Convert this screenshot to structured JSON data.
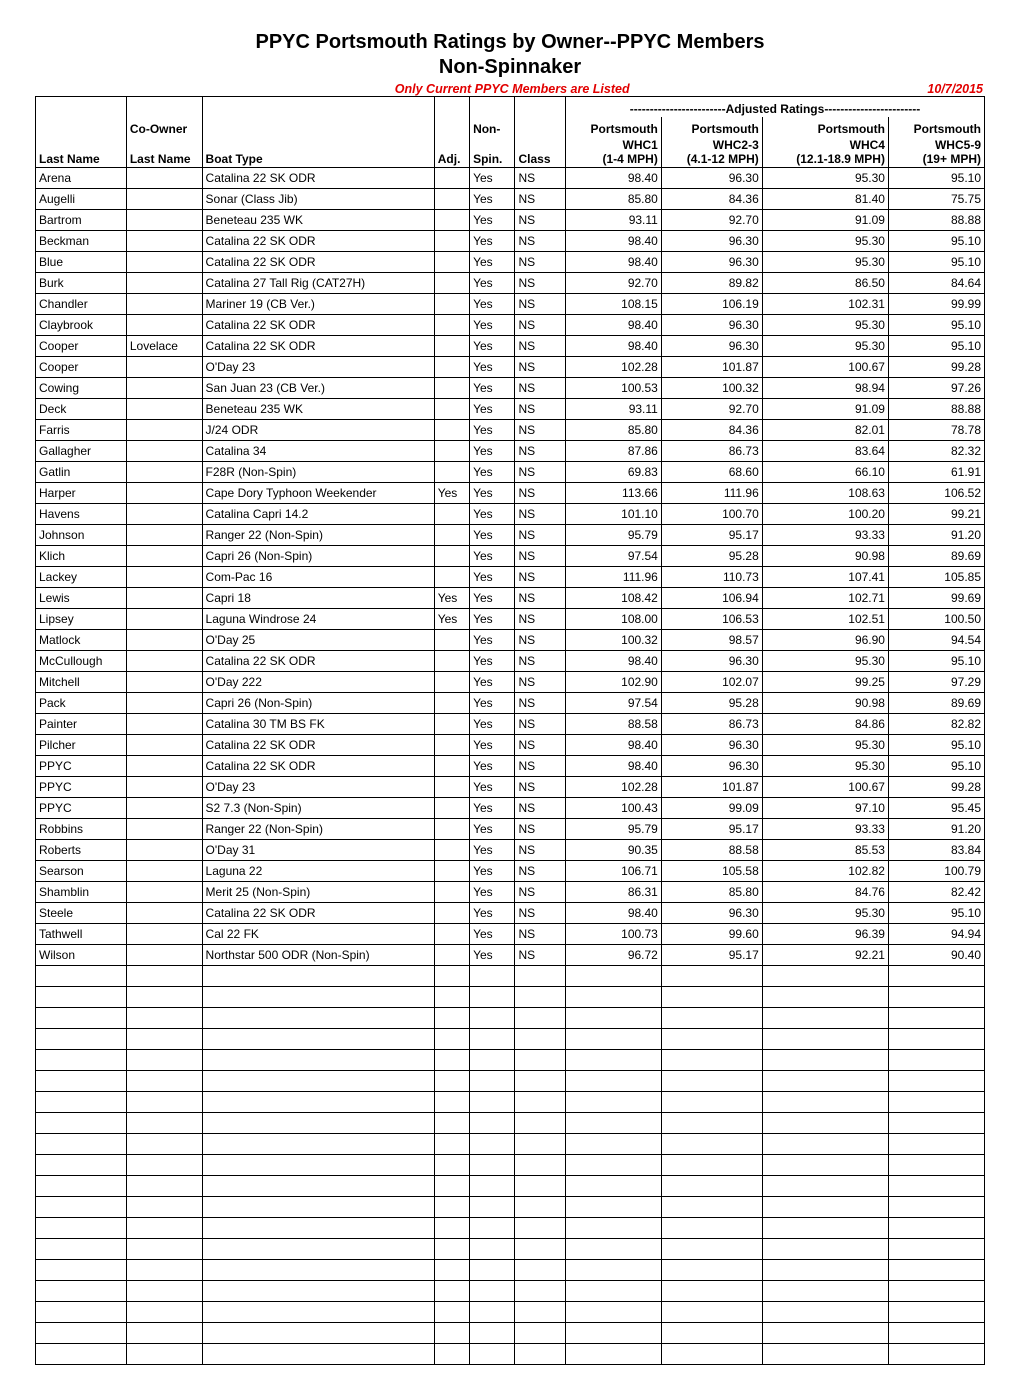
{
  "title_line1": "PPYC Portsmouth Ratings by Owner--PPYC Members",
  "title_line2": "Non-Spinnaker",
  "notice": "Only Current PPYC Members are Listed",
  "date": "10/7/2015",
  "adjusted_header": "------------------------Adjusted Ratings------------------------",
  "columns": {
    "last_name": "Last Name",
    "co_owner_l1": "Co-Owner",
    "co_owner_l2": "Last Name",
    "boat_type": "Boat Type",
    "adj": "Adj.",
    "non_l1": "Non-",
    "non_l2": "Spin.",
    "class": "Class",
    "w1_l1": "Portsmouth",
    "w1_l2": "WHC1",
    "w1_l3": "(1-4 MPH)",
    "w2_l1": "Portsmouth",
    "w2_l2": "WHC2-3",
    "w2_l3": "(4.1-12 MPH)",
    "w3_l1": "Portsmouth",
    "w3_l2": "WHC4",
    "w3_l3": "(12.1-18.9 MPH)",
    "w4_l1": "Portsmouth",
    "w4_l2": "WHC5-9",
    "w4_l3": "(19+ MPH)"
  },
  "rows": [
    {
      "last": "Arena",
      "co": "",
      "boat": "Catalina 22 SK ODR",
      "adj": "",
      "spin": "Yes",
      "cls": "NS",
      "w1": "98.40",
      "w2": "96.30",
      "w3": "95.30",
      "w4": "95.10"
    },
    {
      "last": "Augelli",
      "co": "",
      "boat": "Sonar (Class Jib)",
      "adj": "",
      "spin": "Yes",
      "cls": "NS",
      "w1": "85.80",
      "w2": "84.36",
      "w3": "81.40",
      "w4": "75.75"
    },
    {
      "last": "Bartrom",
      "co": "",
      "boat": "Beneteau 235 WK",
      "adj": "",
      "spin": "Yes",
      "cls": "NS",
      "w1": "93.11",
      "w2": "92.70",
      "w3": "91.09",
      "w4": "88.88"
    },
    {
      "last": "Beckman",
      "co": "",
      "boat": "Catalina 22 SK ODR",
      "adj": "",
      "spin": "Yes",
      "cls": "NS",
      "w1": "98.40",
      "w2": "96.30",
      "w3": "95.30",
      "w4": "95.10"
    },
    {
      "last": "Blue",
      "co": "",
      "boat": "Catalina 22 SK ODR",
      "adj": "",
      "spin": "Yes",
      "cls": "NS",
      "w1": "98.40",
      "w2": "96.30",
      "w3": "95.30",
      "w4": "95.10"
    },
    {
      "last": "Burk",
      "co": "",
      "boat": "Catalina 27 Tall Rig (CAT27H)",
      "adj": "",
      "spin": "Yes",
      "cls": "NS",
      "w1": "92.70",
      "w2": "89.82",
      "w3": "86.50",
      "w4": "84.64"
    },
    {
      "last": "Chandler",
      "co": "",
      "boat": "Mariner 19 (CB Ver.)",
      "adj": "",
      "spin": "Yes",
      "cls": "NS",
      "w1": "108.15",
      "w2": "106.19",
      "w3": "102.31",
      "w4": "99.99"
    },
    {
      "last": "Claybrook",
      "co": "",
      "boat": "Catalina 22 SK ODR",
      "adj": "",
      "spin": "Yes",
      "cls": "NS",
      "w1": "98.40",
      "w2": "96.30",
      "w3": "95.30",
      "w4": "95.10"
    },
    {
      "last": "Cooper",
      "co": "Lovelace",
      "boat": "Catalina 22 SK ODR",
      "adj": "",
      "spin": "Yes",
      "cls": "NS",
      "w1": "98.40",
      "w2": "96.30",
      "w3": "95.30",
      "w4": "95.10"
    },
    {
      "last": "Cooper",
      "co": "",
      "boat": "O'Day 23",
      "adj": "",
      "spin": "Yes",
      "cls": "NS",
      "w1": "102.28",
      "w2": "101.87",
      "w3": "100.67",
      "w4": "99.28"
    },
    {
      "last": "Cowing",
      "co": "",
      "boat": "San Juan 23 (CB Ver.)",
      "adj": "",
      "spin": "Yes",
      "cls": "NS",
      "w1": "100.53",
      "w2": "100.32",
      "w3": "98.94",
      "w4": "97.26"
    },
    {
      "last": "Deck",
      "co": "",
      "boat": "Beneteau 235 WK",
      "adj": "",
      "spin": "Yes",
      "cls": "NS",
      "w1": "93.11",
      "w2": "92.70",
      "w3": "91.09",
      "w4": "88.88"
    },
    {
      "last": "Farris",
      "co": "",
      "boat": "J/24 ODR",
      "adj": "",
      "spin": "Yes",
      "cls": "NS",
      "w1": "85.80",
      "w2": "84.36",
      "w3": "82.01",
      "w4": "78.78"
    },
    {
      "last": "Gallagher",
      "co": "",
      "boat": "Catalina 34",
      "adj": "",
      "spin": "Yes",
      "cls": "NS",
      "w1": "87.86",
      "w2": "86.73",
      "w3": "83.64",
      "w4": "82.32"
    },
    {
      "last": "Gatlin",
      "co": "",
      "boat": "F28R (Non-Spin)",
      "adj": "",
      "spin": "Yes",
      "cls": "NS",
      "w1": "69.83",
      "w2": "68.60",
      "w3": "66.10",
      "w4": "61.91"
    },
    {
      "last": "Harper",
      "co": "",
      "boat": "Cape Dory Typhoon Weekender",
      "adj": "Yes",
      "spin": "Yes",
      "cls": "NS",
      "w1": "113.66",
      "w2": "111.96",
      "w3": "108.63",
      "w4": "106.52"
    },
    {
      "last": "Havens",
      "co": "",
      "boat": "Catalina Capri 14.2",
      "adj": "",
      "spin": "Yes",
      "cls": "NS",
      "w1": "101.10",
      "w2": "100.70",
      "w3": "100.20",
      "w4": "99.21"
    },
    {
      "last": "Johnson",
      "co": "",
      "boat": "Ranger 22 (Non-Spin)",
      "adj": "",
      "spin": "Yes",
      "cls": "NS",
      "w1": "95.79",
      "w2": "95.17",
      "w3": "93.33",
      "w4": "91.20"
    },
    {
      "last": "Klich",
      "co": "",
      "boat": "Capri 26 (Non-Spin)",
      "adj": "",
      "spin": "Yes",
      "cls": "NS",
      "w1": "97.54",
      "w2": "95.28",
      "w3": "90.98",
      "w4": "89.69"
    },
    {
      "last": "Lackey",
      "co": "",
      "boat": "Com-Pac 16",
      "adj": "",
      "spin": "Yes",
      "cls": "NS",
      "w1": "111.96",
      "w2": "110.73",
      "w3": "107.41",
      "w4": "105.85"
    },
    {
      "last": "Lewis",
      "co": "",
      "boat": "Capri 18",
      "adj": "Yes",
      "spin": "Yes",
      "cls": "NS",
      "w1": "108.42",
      "w2": "106.94",
      "w3": "102.71",
      "w4": "99.69"
    },
    {
      "last": "Lipsey",
      "co": "",
      "boat": "Laguna Windrose 24",
      "adj": "Yes",
      "spin": "Yes",
      "cls": "NS",
      "w1": "108.00",
      "w2": "106.53",
      "w3": "102.51",
      "w4": "100.50"
    },
    {
      "last": "Matlock",
      "co": "",
      "boat": "O'Day 25",
      "adj": "",
      "spin": "Yes",
      "cls": "NS",
      "w1": "100.32",
      "w2": "98.57",
      "w3": "96.90",
      "w4": "94.54"
    },
    {
      "last": "McCullough",
      "co": "",
      "boat": "Catalina 22 SK ODR",
      "adj": "",
      "spin": "Yes",
      "cls": "NS",
      "w1": "98.40",
      "w2": "96.30",
      "w3": "95.30",
      "w4": "95.10"
    },
    {
      "last": "Mitchell",
      "co": "",
      "boat": "O'Day 222",
      "adj": "",
      "spin": "Yes",
      "cls": "NS",
      "w1": "102.90",
      "w2": "102.07",
      "w3": "99.25",
      "w4": "97.29"
    },
    {
      "last": "Pack",
      "co": "",
      "boat": "Capri 26 (Non-Spin)",
      "adj": "",
      "spin": "Yes",
      "cls": "NS",
      "w1": "97.54",
      "w2": "95.28",
      "w3": "90.98",
      "w4": "89.69"
    },
    {
      "last": "Painter",
      "co": "",
      "boat": "Catalina 30 TM BS FK",
      "adj": "",
      "spin": "Yes",
      "cls": "NS",
      "w1": "88.58",
      "w2": "86.73",
      "w3": "84.86",
      "w4": "82.82"
    },
    {
      "last": "Pilcher",
      "co": "",
      "boat": "Catalina 22 SK ODR",
      "adj": "",
      "spin": "Yes",
      "cls": "NS",
      "w1": "98.40",
      "w2": "96.30",
      "w3": "95.30",
      "w4": "95.10"
    },
    {
      "last": "PPYC",
      "co": "",
      "boat": "Catalina 22 SK ODR",
      "adj": "",
      "spin": "Yes",
      "cls": "NS",
      "w1": "98.40",
      "w2": "96.30",
      "w3": "95.30",
      "w4": "95.10"
    },
    {
      "last": "PPYC",
      "co": "",
      "boat": "O'Day 23",
      "adj": "",
      "spin": "Yes",
      "cls": "NS",
      "w1": "102.28",
      "w2": "101.87",
      "w3": "100.67",
      "w4": "99.28"
    },
    {
      "last": "PPYC",
      "co": "",
      "boat": "S2 7.3 (Non-Spin)",
      "adj": "",
      "spin": "Yes",
      "cls": "NS",
      "w1": "100.43",
      "w2": "99.09",
      "w3": "97.10",
      "w4": "95.45"
    },
    {
      "last": "Robbins",
      "co": "",
      "boat": "Ranger 22 (Non-Spin)",
      "adj": "",
      "spin": "Yes",
      "cls": "NS",
      "w1": "95.79",
      "w2": "95.17",
      "w3": "93.33",
      "w4": "91.20"
    },
    {
      "last": "Roberts",
      "co": "",
      "boat": "O'Day 31",
      "adj": "",
      "spin": "Yes",
      "cls": "NS",
      "w1": "90.35",
      "w2": "88.58",
      "w3": "85.53",
      "w4": "83.84"
    },
    {
      "last": "Searson",
      "co": "",
      "boat": "Laguna 22",
      "adj": "",
      "spin": "Yes",
      "cls": "NS",
      "w1": "106.71",
      "w2": "105.58",
      "w3": "102.82",
      "w4": "100.79"
    },
    {
      "last": "Shamblin",
      "co": "",
      "boat": "Merit 25 (Non-Spin)",
      "adj": "",
      "spin": "Yes",
      "cls": "NS",
      "w1": "86.31",
      "w2": "85.80",
      "w3": "84.76",
      "w4": "82.42"
    },
    {
      "last": "Steele",
      "co": "",
      "boat": "Catalina 22 SK ODR",
      "adj": "",
      "spin": "Yes",
      "cls": "NS",
      "w1": "98.40",
      "w2": "96.30",
      "w3": "95.30",
      "w4": "95.10"
    },
    {
      "last": "Tathwell",
      "co": "",
      "boat": "Cal 22 FK",
      "adj": "",
      "spin": "Yes",
      "cls": "NS",
      "w1": "100.73",
      "w2": "99.60",
      "w3": "96.39",
      "w4": "94.94"
    },
    {
      "last": "Wilson",
      "co": "",
      "boat": "Northstar 500 ODR (Non-Spin)",
      "adj": "",
      "spin": "Yes",
      "cls": "NS",
      "w1": "96.72",
      "w2": "95.17",
      "w3": "92.21",
      "w4": "90.40"
    }
  ],
  "empty_rows": 19
}
